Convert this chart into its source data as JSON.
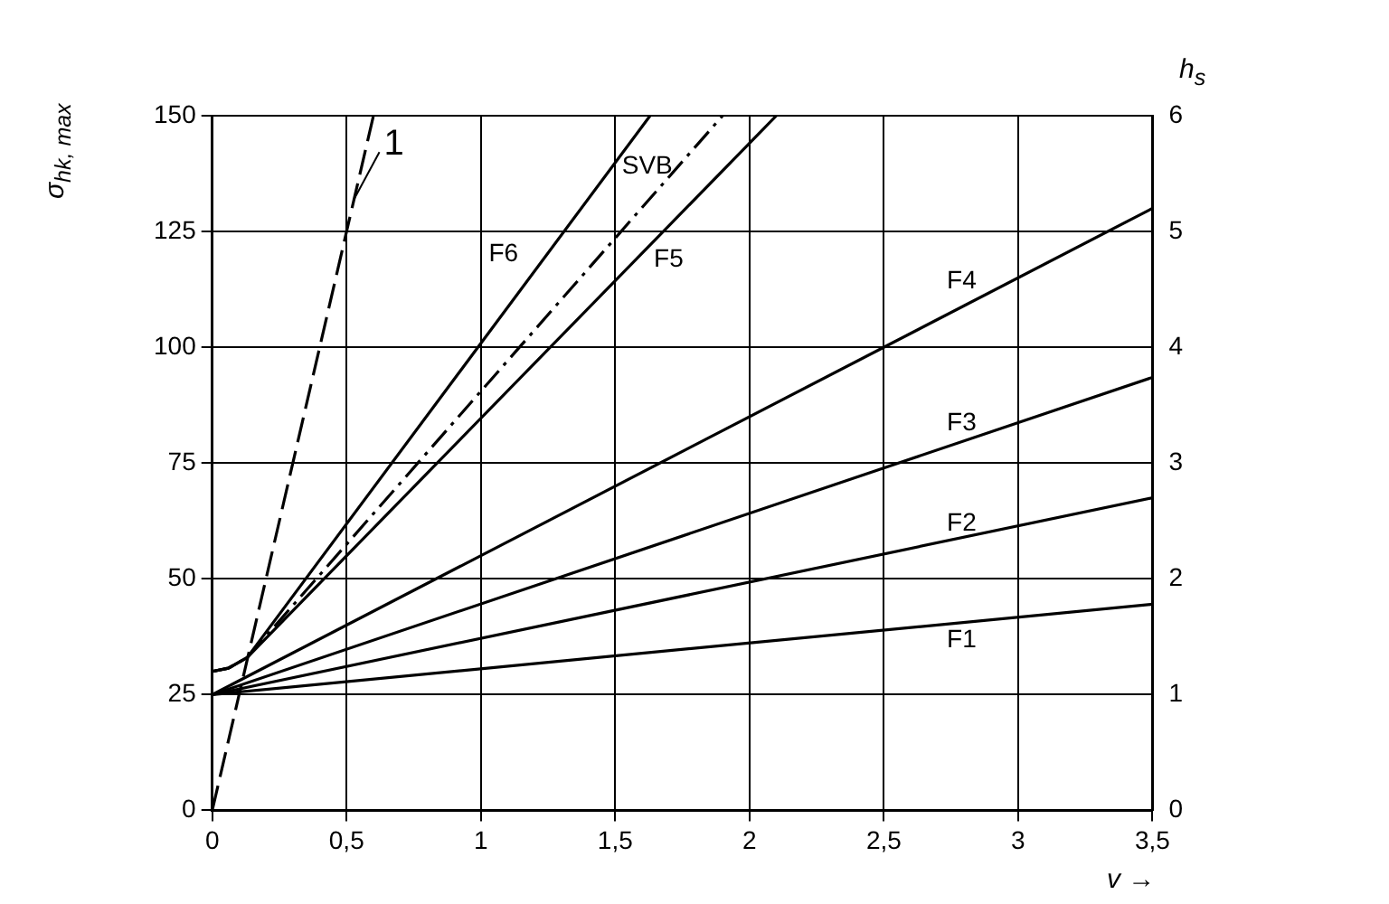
{
  "chart_data": {
    "type": "line",
    "ylabel": "σ$_{hk, max}$",
    "y2label": "h$_{s}$",
    "xlabel": "v →",
    "xlim": [
      0,
      3.5
    ],
    "xticks": [
      0,
      {
        "value": 0.5,
        "label": "0,5"
      },
      1,
      {
        "value": 1.5,
        "label": "1,5"
      },
      2,
      {
        "value": 2.5,
        "label": "2,5"
      },
      3,
      {
        "value": 3.5,
        "label": "3,5"
      }
    ],
    "ylim": [
      0,
      150
    ],
    "yticks": [
      0,
      25,
      50,
      75,
      100,
      125,
      150
    ],
    "y2lim": [
      0,
      6
    ],
    "y2ticks": [
      0,
      1,
      2,
      3,
      4,
      5,
      6
    ],
    "grid": true,
    "legend": false,
    "marker": "none",
    "series": [
      {
        "name": "1",
        "color": "#000000",
        "line_style": "dashed",
        "x": [
          0,
          0.6
        ],
        "values": [
          0,
          150
        ]
      },
      {
        "name": "F6",
        "color": "#000000",
        "line_style": "solid",
        "x": [
          0,
          0.06,
          0.13,
          1.63
        ],
        "values": [
          30,
          30.7,
          33,
          150
        ]
      },
      {
        "name": "SVB",
        "color": "#000000",
        "line_style": "dashdot",
        "x": [
          0,
          0.06,
          0.13,
          1.9
        ],
        "values": [
          30,
          30.7,
          33,
          150
        ]
      },
      {
        "name": "F5",
        "color": "#000000",
        "line_style": "solid",
        "x": [
          0,
          0.06,
          0.13,
          2.1
        ],
        "values": [
          30,
          30.7,
          33,
          150
        ]
      },
      {
        "name": "F4",
        "color": "#000000",
        "line_style": "solid",
        "x": [
          0,
          3.5
        ],
        "values": [
          25,
          130
        ]
      },
      {
        "name": "F3",
        "color": "#000000",
        "line_style": "solid",
        "x": [
          0,
          3.5
        ],
        "values": [
          25,
          93.5
        ]
      },
      {
        "name": "F2",
        "color": "#000000",
        "line_style": "solid",
        "x": [
          0,
          3.5
        ],
        "values": [
          25,
          67.5
        ]
      },
      {
        "name": "F1",
        "color": "#000000",
        "line_style": "solid",
        "x": [
          0,
          3.5
        ],
        "values": [
          25,
          44.5
        ]
      }
    ]
  }
}
